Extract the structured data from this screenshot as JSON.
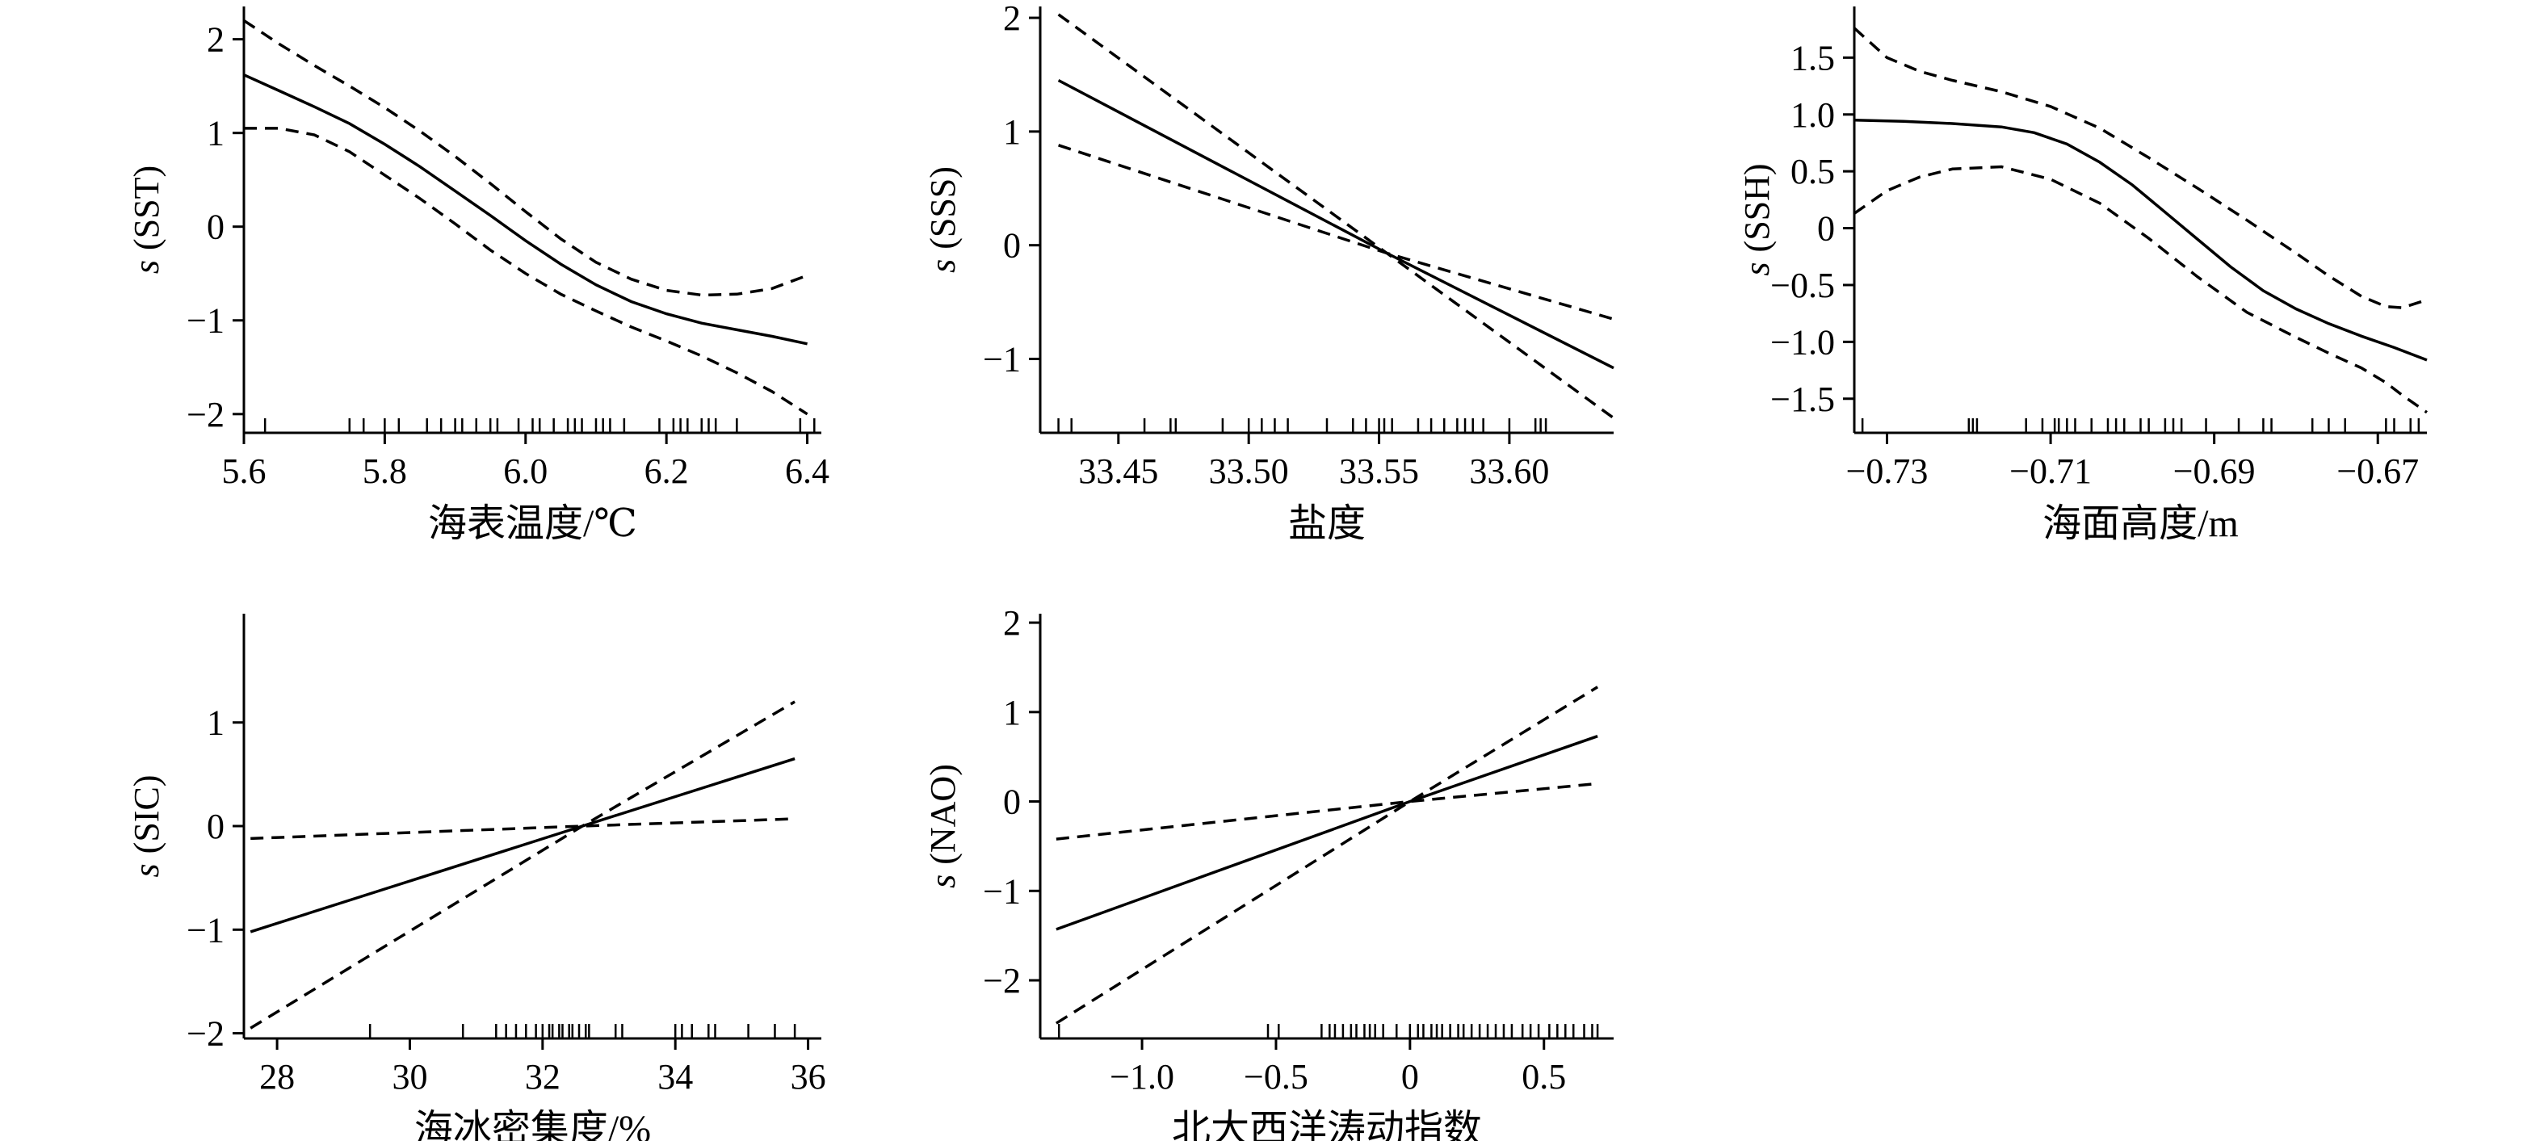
{
  "chart_data": [
    {
      "type": "line",
      "ylabel_prefix": "s",
      "ylabel_var": "(SST)",
      "xlabel": "海表温度/℃",
      "xlim": [
        5.6,
        6.42
      ],
      "ylim": [
        -2.2,
        2.35
      ],
      "xticks": [
        5.6,
        5.8,
        6.0,
        6.2,
        6.4
      ],
      "xtick_labels": [
        "5.6",
        "5.8",
        "6.0",
        "6.2",
        "6.4"
      ],
      "yticks": [
        2,
        1,
        0,
        -1,
        -2
      ],
      "ytick_labels": [
        "2",
        "1",
        "0",
        "−1",
        "−2"
      ],
      "series": [
        {
          "style": "solid",
          "x": [
            5.6,
            5.65,
            5.7,
            5.75,
            5.8,
            5.85,
            5.9,
            5.95,
            6.0,
            6.05,
            6.1,
            6.15,
            6.2,
            6.25,
            6.3,
            6.35,
            6.4
          ],
          "y": [
            1.62,
            1.45,
            1.28,
            1.1,
            0.88,
            0.64,
            0.38,
            0.12,
            -0.15,
            -0.4,
            -0.62,
            -0.8,
            -0.93,
            -1.03,
            -1.1,
            -1.17,
            -1.25
          ]
        },
        {
          "style": "dashed",
          "x": [
            5.6,
            5.65,
            5.7,
            5.75,
            5.8,
            5.85,
            5.9,
            5.95,
            6.0,
            6.05,
            6.1,
            6.15,
            6.2,
            6.25,
            6.3,
            6.35,
            6.4
          ],
          "y": [
            2.2,
            1.95,
            1.72,
            1.5,
            1.27,
            1.02,
            0.75,
            0.46,
            0.16,
            -0.13,
            -0.38,
            -0.56,
            -0.68,
            -0.73,
            -0.72,
            -0.66,
            -0.52
          ]
        },
        {
          "style": "dashed",
          "x": [
            5.6,
            5.65,
            5.7,
            5.75,
            5.8,
            5.85,
            5.9,
            5.95,
            6.0,
            6.05,
            6.1,
            6.15,
            6.2,
            6.25,
            6.3,
            6.35,
            6.4
          ],
          "y": [
            1.05,
            1.05,
            0.98,
            0.8,
            0.55,
            0.3,
            0.03,
            -0.25,
            -0.5,
            -0.72,
            -0.9,
            -1.07,
            -1.22,
            -1.38,
            -1.56,
            -1.76,
            -2.0
          ]
        }
      ],
      "rug": [
        5.6,
        5.63,
        5.75,
        5.77,
        5.8,
        5.82,
        5.86,
        5.88,
        5.9,
        5.91,
        5.93,
        5.95,
        5.96,
        5.99,
        6.01,
        6.02,
        6.04,
        6.06,
        6.07,
        6.08,
        6.1,
        6.11,
        6.12,
        6.14,
        6.19,
        6.21,
        6.22,
        6.23,
        6.25,
        6.26,
        6.27,
        6.3,
        6.39,
        6.41
      ]
    },
    {
      "type": "line",
      "ylabel_prefix": "s",
      "ylabel_var": "(SSS)",
      "xlabel": "盐度",
      "xlim": [
        33.42,
        33.64
      ],
      "ylim": [
        -1.65,
        2.1
      ],
      "xticks": [
        33.45,
        33.5,
        33.55,
        33.6
      ],
      "xtick_labels": [
        "33.45",
        "33.50",
        "33.55",
        "33.60"
      ],
      "yticks": [
        2,
        1,
        0,
        -1
      ],
      "ytick_labels": [
        "2",
        "1",
        "0",
        "−1"
      ],
      "series": [
        {
          "style": "solid",
          "x": [
            33.427,
            33.553,
            33.64
          ],
          "y": [
            1.45,
            -0.07,
            -1.08
          ]
        },
        {
          "style": "dashed",
          "x": [
            33.427,
            33.553,
            33.64
          ],
          "y": [
            2.03,
            -0.07,
            -1.52
          ]
        },
        {
          "style": "dashed",
          "x": [
            33.427,
            33.553,
            33.64
          ],
          "y": [
            0.88,
            -0.07,
            -0.65
          ]
        }
      ],
      "rug": [
        33.427,
        33.432,
        33.46,
        33.47,
        33.472,
        33.49,
        33.5,
        33.505,
        33.51,
        33.515,
        33.53,
        33.54,
        33.545,
        33.55,
        33.552,
        33.555,
        33.565,
        33.57,
        33.575,
        33.58,
        33.583,
        33.586,
        33.59,
        33.6,
        33.61,
        33.612,
        33.614
      ]
    },
    {
      "type": "line",
      "ylabel_prefix": "s",
      "ylabel_var": "(SSH)",
      "xlabel": "海面高度/m",
      "xlim": [
        -0.734,
        -0.664
      ],
      "ylim": [
        -1.8,
        1.95
      ],
      "xticks": [
        -0.73,
        -0.71,
        -0.69,
        -0.67
      ],
      "xtick_labels": [
        "−0.73",
        "−0.71",
        "−0.69",
        "−0.67"
      ],
      "yticks": [
        1.5,
        1.0,
        0.5,
        0,
        -0.5,
        -1.0,
        -1.5
      ],
      "ytick_labels": [
        "1.5",
        "1.0",
        "0.5",
        "0",
        "−0.5",
        "−1.0",
        "−1.5"
      ],
      "series": [
        {
          "style": "solid",
          "x": [
            -0.734,
            -0.728,
            -0.722,
            -0.716,
            -0.712,
            -0.708,
            -0.704,
            -0.7,
            -0.696,
            -0.692,
            -0.688,
            -0.684,
            -0.68,
            -0.676,
            -0.672,
            -0.668,
            -0.664
          ],
          "y": [
            0.95,
            0.94,
            0.92,
            0.89,
            0.84,
            0.74,
            0.58,
            0.38,
            0.14,
            -0.1,
            -0.34,
            -0.55,
            -0.71,
            -0.84,
            -0.95,
            -1.05,
            -1.16
          ]
        },
        {
          "style": "dashed",
          "x": [
            -0.734,
            -0.73,
            -0.726,
            -0.722,
            -0.716,
            -0.71,
            -0.704,
            -0.698,
            -0.692,
            -0.686,
            -0.68,
            -0.676,
            -0.672,
            -0.669,
            -0.667,
            -0.664
          ],
          "y": [
            1.76,
            1.5,
            1.38,
            1.3,
            1.2,
            1.07,
            0.88,
            0.62,
            0.35,
            0.07,
            -0.22,
            -0.42,
            -0.6,
            -0.69,
            -0.7,
            -0.63
          ]
        },
        {
          "style": "dashed",
          "x": [
            -0.734,
            -0.73,
            -0.726,
            -0.722,
            -0.716,
            -0.71,
            -0.704,
            -0.698,
            -0.692,
            -0.686,
            -0.68,
            -0.676,
            -0.672,
            -0.669,
            -0.667,
            -0.664
          ],
          "y": [
            0.13,
            0.33,
            0.45,
            0.52,
            0.54,
            0.43,
            0.22,
            -0.09,
            -0.43,
            -0.74,
            -0.96,
            -1.1,
            -1.23,
            -1.36,
            -1.47,
            -1.62
          ]
        }
      ],
      "rug": [
        -0.733,
        -0.72,
        -0.7195,
        -0.719,
        -0.713,
        -0.711,
        -0.7095,
        -0.709,
        -0.708,
        -0.707,
        -0.705,
        -0.703,
        -0.702,
        -0.701,
        -0.699,
        -0.698,
        -0.696,
        -0.695,
        -0.694,
        -0.691,
        -0.687,
        -0.684,
        -0.683,
        -0.678,
        -0.676,
        -0.674,
        -0.669,
        -0.668,
        -0.666,
        -0.665
      ]
    },
    {
      "type": "line",
      "ylabel_prefix": "s",
      "ylabel_var": "(SIC)",
      "xlabel": "海冰密集度/%",
      "xlim": [
        27.5,
        36.2
      ],
      "ylim": [
        -2.05,
        2.05
      ],
      "xticks": [
        28,
        30,
        32,
        34,
        36
      ],
      "xtick_labels": [
        "28",
        "30",
        "32",
        "34",
        "36"
      ],
      "yticks": [
        1,
        0,
        -1,
        -2
      ],
      "ytick_labels": [
        "1",
        "0",
        "−1",
        "−2"
      ],
      "series": [
        {
          "style": "solid",
          "x": [
            27.6,
            32.6,
            35.8
          ],
          "y": [
            -1.02,
            0.0,
            0.65
          ]
        },
        {
          "style": "dashed",
          "x": [
            27.6,
            32.6,
            35.8
          ],
          "y": [
            -1.95,
            0.0,
            1.2
          ]
        },
        {
          "style": "dashed",
          "x": [
            27.6,
            32.6,
            35.8
          ],
          "y": [
            -0.12,
            0.0,
            0.07
          ]
        }
      ],
      "rug": [
        29.4,
        30.8,
        31.3,
        31.45,
        31.6,
        31.75,
        31.9,
        32.0,
        32.1,
        32.15,
        32.25,
        32.3,
        32.4,
        32.45,
        32.55,
        32.65,
        32.7,
        33.1,
        33.2,
        34.0,
        34.1,
        34.25,
        34.5,
        34.6,
        35.1,
        35.5,
        35.8
      ]
    },
    {
      "type": "line",
      "ylabel_prefix": "s",
      "ylabel_var": "(NAO)",
      "xlabel": "北大西洋涛动指数",
      "xlim": [
        -1.38,
        0.76
      ],
      "ylim": [
        -2.65,
        2.1
      ],
      "xticks": [
        -1.0,
        -0.5,
        0,
        0.5
      ],
      "xtick_labels": [
        "−1.0",
        "−0.5",
        "0",
        "0.5"
      ],
      "yticks": [
        2,
        1,
        0,
        -1,
        -2
      ],
      "ytick_labels": [
        "2",
        "1",
        "0",
        "−1",
        "−2"
      ],
      "series": [
        {
          "style": "solid",
          "x": [
            -1.32,
            0.0,
            0.7
          ],
          "y": [
            -1.43,
            0.0,
            0.73
          ]
        },
        {
          "style": "dashed",
          "x": [
            -1.32,
            0.0,
            0.7
          ],
          "y": [
            -2.48,
            0.0,
            1.28
          ]
        },
        {
          "style": "dashed",
          "x": [
            -1.32,
            0.0,
            0.7
          ],
          "y": [
            -0.42,
            0.0,
            0.2
          ]
        }
      ],
      "rug": [
        -1.31,
        -0.53,
        -0.49,
        -0.33,
        -0.3,
        -0.28,
        -0.25,
        -0.22,
        -0.2,
        -0.17,
        -0.15,
        -0.13,
        -0.1,
        -0.05,
        0.0,
        0.03,
        0.05,
        0.08,
        0.1,
        0.12,
        0.15,
        0.18,
        0.2,
        0.23,
        0.26,
        0.29,
        0.32,
        0.35,
        0.38,
        0.42,
        0.45,
        0.48,
        0.52,
        0.55,
        0.58,
        0.61,
        0.65,
        0.68,
        0.7
      ]
    }
  ]
}
